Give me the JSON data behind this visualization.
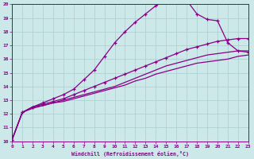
{
  "xlabel": "Windchill (Refroidissement éolien,°C)",
  "ylabel": "",
  "xlim": [
    0,
    23
  ],
  "ylim": [
    10,
    20
  ],
  "xticks": [
    0,
    1,
    2,
    3,
    4,
    5,
    6,
    7,
    8,
    9,
    10,
    11,
    12,
    13,
    14,
    15,
    16,
    17,
    18,
    19,
    20,
    21,
    22,
    23
  ],
  "yticks": [
    10,
    11,
    12,
    13,
    14,
    15,
    16,
    17,
    18,
    19,
    20
  ],
  "background_color": "#cce8e8",
  "grid_color": "#aacece",
  "line_color": "#880088",
  "line_bell_x": [
    0,
    1,
    2,
    3,
    4,
    5,
    6,
    7,
    8,
    9,
    10,
    11,
    12,
    13,
    14,
    15,
    16,
    17,
    18,
    19,
    20,
    21,
    22,
    23
  ],
  "line_bell_y": [
    10.1,
    12.1,
    12.5,
    12.8,
    13.1,
    13.4,
    13.8,
    14.5,
    15.2,
    16.2,
    17.2,
    18.0,
    18.7,
    19.3,
    19.9,
    20.3,
    20.4,
    20.3,
    19.3,
    18.9,
    18.8,
    17.2,
    16.6,
    16.5
  ],
  "line_top_x": [
    0,
    1,
    2,
    3,
    4,
    5,
    6,
    7,
    8,
    9,
    10,
    11,
    12,
    13,
    14,
    15,
    16,
    17,
    18,
    19,
    20,
    21,
    22,
    23
  ],
  "line_top_y": [
    10.1,
    12.1,
    12.5,
    12.7,
    12.9,
    13.1,
    13.4,
    13.7,
    14.0,
    14.3,
    14.6,
    14.9,
    15.2,
    15.5,
    15.8,
    16.1,
    16.4,
    16.7,
    16.9,
    17.1,
    17.3,
    17.4,
    17.5,
    17.5
  ],
  "line_mid_x": [
    0,
    1,
    2,
    3,
    4,
    5,
    6,
    7,
    8,
    9,
    10,
    11,
    12,
    13,
    14,
    15,
    16,
    17,
    18,
    19,
    20,
    21,
    22,
    23
  ],
  "line_mid_y": [
    10.1,
    12.1,
    12.5,
    12.6,
    12.8,
    13.0,
    13.2,
    13.4,
    13.6,
    13.8,
    14.0,
    14.3,
    14.6,
    14.9,
    15.2,
    15.5,
    15.7,
    15.9,
    16.1,
    16.3,
    16.4,
    16.5,
    16.6,
    16.6
  ],
  "line_bot_x": [
    0,
    1,
    2,
    3,
    4,
    5,
    6,
    7,
    8,
    9,
    10,
    11,
    12,
    13,
    14,
    15,
    16,
    17,
    18,
    19,
    20,
    21,
    22,
    23
  ],
  "line_bot_y": [
    10.1,
    12.1,
    12.4,
    12.6,
    12.8,
    12.9,
    13.1,
    13.3,
    13.5,
    13.7,
    13.9,
    14.1,
    14.4,
    14.6,
    14.9,
    15.1,
    15.3,
    15.5,
    15.7,
    15.8,
    15.9,
    16.0,
    16.2,
    16.3
  ]
}
